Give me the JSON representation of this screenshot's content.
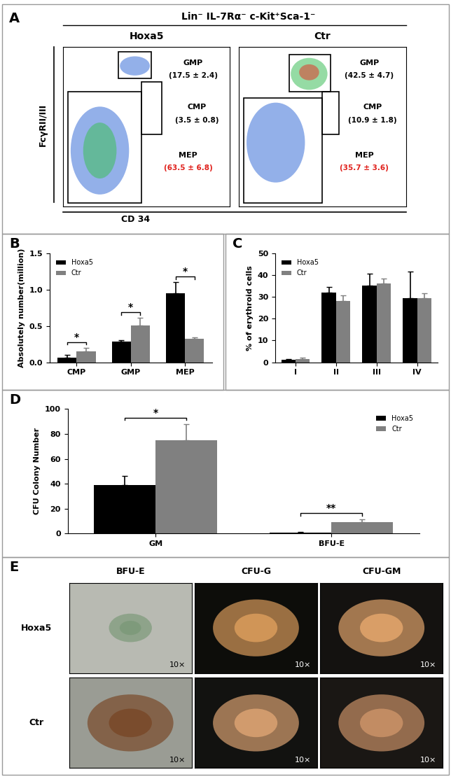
{
  "flow_panel": {
    "panel": "A",
    "title": "Lin⁻ IL-7Rα⁻ c-Kit⁺Sca-1⁻",
    "xlabel": "CD 34",
    "ylabel": "FcγRII/III",
    "plots": [
      {
        "name": "Hoxa5",
        "gates": [
          {
            "name": "GMP",
            "label": "(17.5 ± 2.4)",
            "color": "#000000"
          },
          {
            "name": "CMP",
            "label": "(3.5 ± 0.8)",
            "color": "#000000"
          },
          {
            "name": "MEP",
            "label": "(63.5 ± 6.8)",
            "color": "#e0201b"
          }
        ]
      },
      {
        "name": "Ctr",
        "gates": [
          {
            "name": "GMP",
            "label": "(42.5 ± 4.7)",
            "color": "#000000"
          },
          {
            "name": "CMP",
            "label": "(10.9 ± 1.8)",
            "color": "#000000"
          },
          {
            "name": "MEP",
            "label": "(35.7 ± 3.6)",
            "color": "#e0201b"
          }
        ]
      }
    ]
  },
  "chart_data": [
    {
      "type": "bar",
      "panel": "B",
      "ylabel": "Absolutely number(million)",
      "categories": [
        "CMP",
        "GMP",
        "MEP"
      ],
      "series": [
        {
          "name": "Hoxa5",
          "color": "#000000",
          "values": [
            0.06,
            0.28,
            0.95
          ],
          "errors": [
            0.04,
            0.02,
            0.15
          ]
        },
        {
          "name": "Ctr",
          "color": "#808080",
          "values": [
            0.15,
            0.51,
            0.32
          ],
          "errors": [
            0.05,
            0.1,
            0.02
          ]
        }
      ],
      "significance": [
        "*",
        "*",
        "*"
      ],
      "ylim": [
        0,
        1.5
      ],
      "yticks": [
        {
          "value": 0,
          "label": "0.0"
        },
        {
          "value": 0.5,
          "label": "0.5"
        },
        {
          "value": 1.0,
          "label": "1.0"
        },
        {
          "value": 1.5,
          "label": "1.5"
        }
      ],
      "legend": "upper left"
    },
    {
      "type": "bar",
      "panel": "C",
      "ylabel": "% of erythroid cells",
      "categories": [
        "I",
        "II",
        "III",
        "IV"
      ],
      "series": [
        {
          "name": "Hoxa5",
          "color": "#000000",
          "values": [
            1,
            32,
            35,
            29.5
          ],
          "errors": [
            0.5,
            2.5,
            5.5,
            12
          ]
        },
        {
          "name": "Ctr",
          "color": "#808080",
          "values": [
            1.5,
            28,
            36,
            29.5
          ],
          "errors": [
            0.5,
            2.5,
            2.5,
            2
          ]
        }
      ],
      "ylim": [
        0,
        50
      ],
      "yticks": [
        0,
        10,
        20,
        30,
        40,
        50
      ],
      "legend": "upper left"
    },
    {
      "type": "bar",
      "panel": "D",
      "ylabel": "CFU Colony Number",
      "categories": [
        "GM",
        "BFU-E"
      ],
      "series": [
        {
          "name": "Hoxa5",
          "color": "#000000",
          "values": [
            39,
            1
          ],
          "errors": [
            7,
            0.5
          ]
        },
        {
          "name": "Ctr",
          "color": "#808080",
          "values": [
            75,
            9
          ],
          "errors": [
            13,
            2.5
          ]
        }
      ],
      "significance": [
        "*",
        "**"
      ],
      "ylim": [
        0,
        100
      ],
      "yticks": [
        0,
        20,
        40,
        60,
        80,
        100
      ],
      "legend": "upper right"
    }
  ],
  "image_panel": {
    "panel": "E",
    "columns": [
      "BFU-E",
      "CFU-G",
      "CFU-GM"
    ],
    "rows": [
      "Hoxa5",
      "Ctr"
    ],
    "magnification": "10×"
  }
}
